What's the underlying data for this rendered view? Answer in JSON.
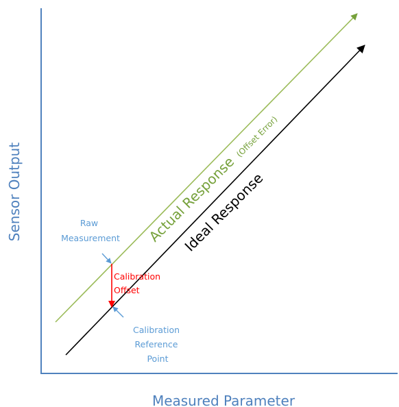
{
  "axes": {
    "x_label": "Measured Parameter",
    "y_label": "Sensor Output"
  },
  "lines": {
    "actual": {
      "label_main": "Actual Response",
      "label_note": "(Offset Error)"
    },
    "ideal": {
      "label": "Ideal Response"
    }
  },
  "annotations": {
    "raw_measurement": [
      "Raw",
      "Measurement"
    ],
    "calibration_offset": [
      "Calibration",
      "Offset"
    ],
    "calibration_reference_point": [
      "Calibration",
      "Reference",
      "Point"
    ]
  },
  "colors": {
    "axis": "#4f81bd",
    "axis_text": "#4f81bd",
    "actual_line": "#9bbb59",
    "actual_arrowhead": "#76a13b",
    "actual_text": "#76a13b",
    "ideal_line": "#000000",
    "offset": "#ff0000",
    "pointer_arrow": "#5b9bd5",
    "annotation_text": "#5b9bd5"
  }
}
